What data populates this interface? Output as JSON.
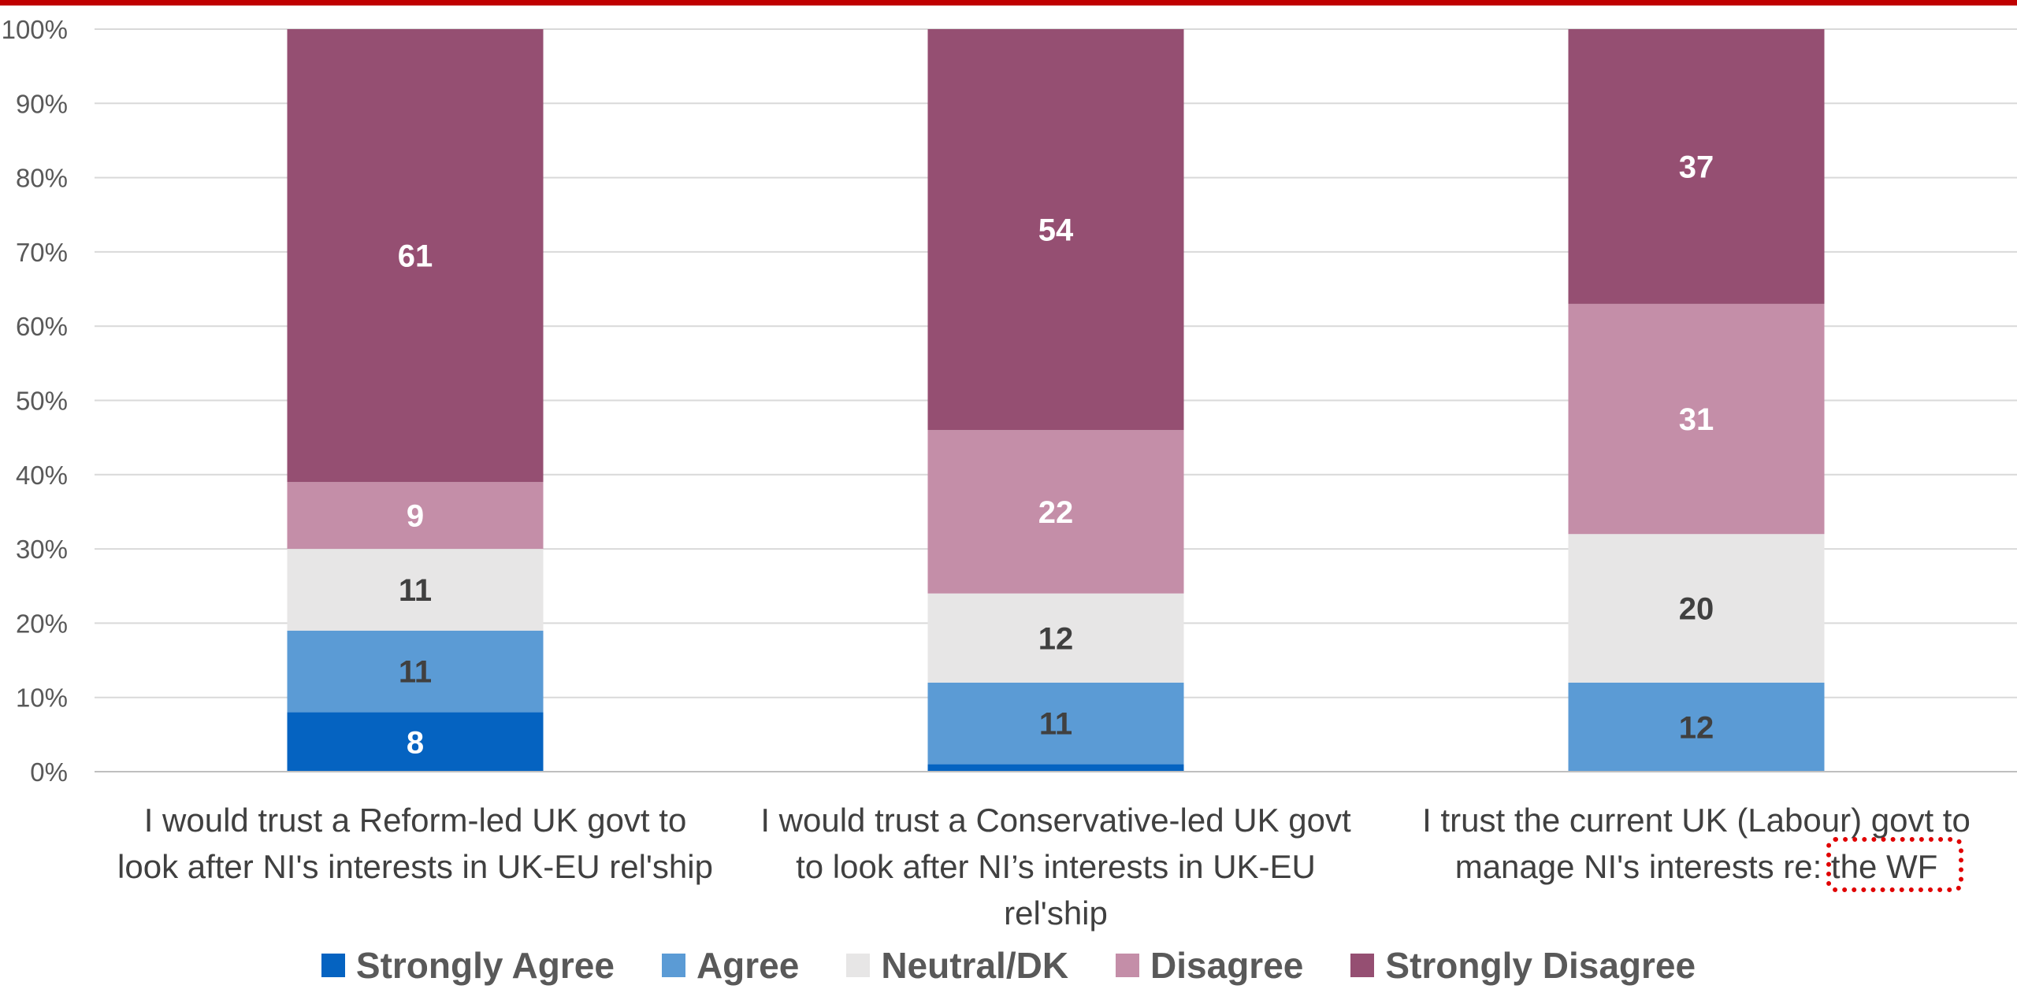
{
  "chart_data": {
    "type": "bar",
    "stacked": true,
    "ylim": [
      0,
      100
    ],
    "yticks": [
      "0%",
      "10%",
      "20%",
      "30%",
      "40%",
      "50%",
      "60%",
      "70%",
      "80%",
      "90%",
      "100%"
    ],
    "grid": true,
    "legend_position": "bottom",
    "categories": [
      [
        "I would trust a Reform-led UK govt to",
        "look after NI's interests in UK-EU rel'ship"
      ],
      [
        "I would trust a Conservative-led UK govt",
        "to look after NI’s interests in UK-EU",
        "rel'ship"
      ],
      [
        "I trust the current UK (Labour) govt to",
        "manage NI's interests re: the WF"
      ]
    ],
    "series": [
      {
        "name": "Strongly Agree",
        "color": "#0563c1",
        "label_color": "#ffffff",
        "values": [
          8,
          1,
          0
        ],
        "labels": [
          "8",
          "",
          ""
        ]
      },
      {
        "name": "Agree",
        "color": "#5b9bd5",
        "label_color": "#404040",
        "values": [
          11,
          11,
          12
        ],
        "labels": [
          "11",
          "11",
          "12"
        ]
      },
      {
        "name": "Neutral/DK",
        "color": "#e7e6e6",
        "label_color": "#404040",
        "values": [
          11,
          12,
          20
        ],
        "labels": [
          "11",
          "12",
          "20"
        ]
      },
      {
        "name": "Disagree",
        "color": "#c48ea8",
        "label_color": "#ffffff",
        "values": [
          9,
          22,
          31
        ],
        "labels": [
          "9",
          "22",
          "31"
        ]
      },
      {
        "name": "Strongly Disagree",
        "color": "#954f72",
        "label_color": "#ffffff",
        "values": [
          61,
          54,
          37
        ],
        "labels": [
          "61",
          "54",
          "37"
        ]
      }
    ]
  },
  "colors": {
    "top_bar": "#c00000",
    "gridline": "#d9d9d9",
    "highlight": "#e00000"
  }
}
